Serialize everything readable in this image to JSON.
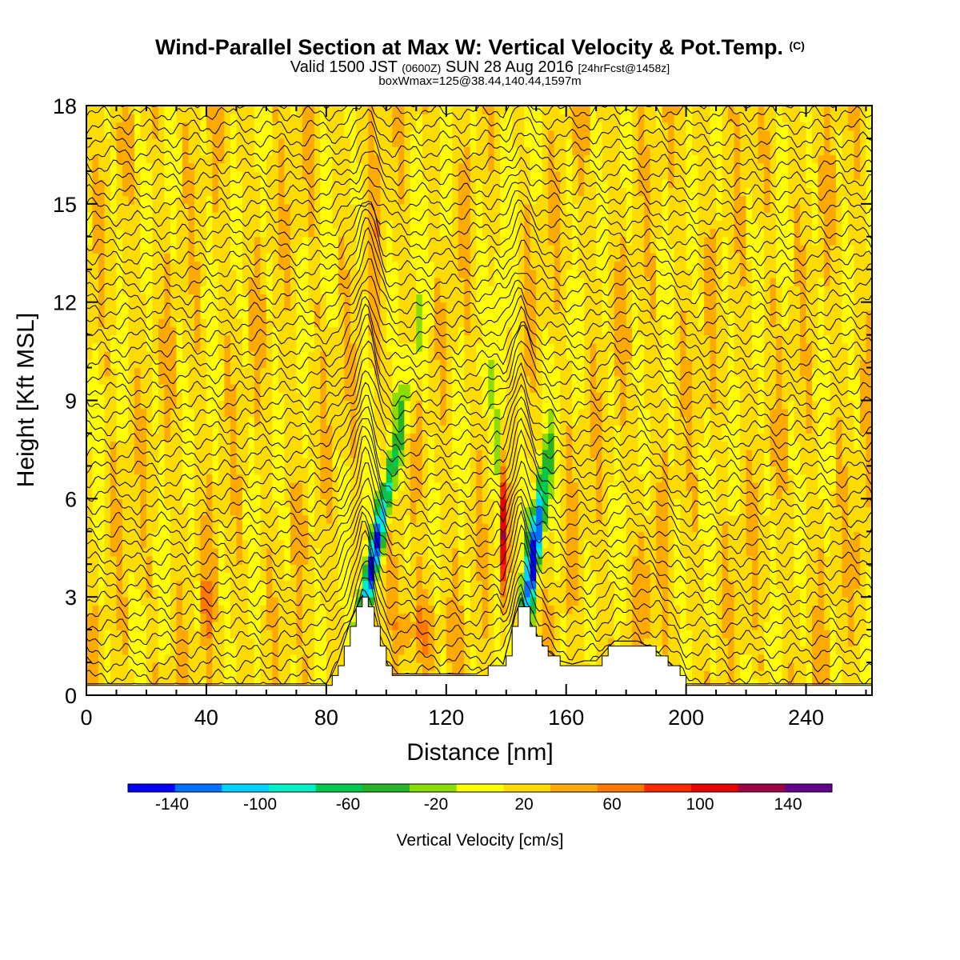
{
  "title": {
    "main": "Wind-Parallel Section at Max W: Vertical Velocity & Pot.Temp.",
    "main_mark": "(C)",
    "valid_prefix": "Valid 1500 JST",
    "valid_utc": "(0600Z)",
    "valid_date": "SUN 28 Aug 2016",
    "forecast": "[24hrFcst@1458z]",
    "box": "boxWmax=125@38.44,140.44,1597m"
  },
  "chart_data": {
    "type": "heatmap",
    "xlabel": "Distance [nm]",
    "ylabel": "Height [Kft MSL]",
    "xlim": [
      0,
      262
    ],
    "ylim": [
      0,
      18
    ],
    "x_ticks": [
      0,
      40,
      80,
      120,
      160,
      200,
      240
    ],
    "y_ticks": [
      0,
      3,
      6,
      9,
      12,
      15,
      18
    ],
    "colorbar": {
      "title": "Vertical Velocity [cm/s]",
      "levels": [
        -160,
        -140,
        -120,
        -100,
        -80,
        -60,
        -40,
        -20,
        0,
        20,
        40,
        60,
        80,
        100,
        120,
        140,
        160
      ],
      "colors": [
        "#0000ff",
        "#0070ff",
        "#00d0ff",
        "#00f0c8",
        "#00c850",
        "#28b428",
        "#8cdc00",
        "#ffff00",
        "#ffdc00",
        "#ffaa00",
        "#ff7800",
        "#ff2800",
        "#e60000",
        "#a00046",
        "#64008c"
      ],
      "labels": [
        -140,
        -100,
        -60,
        -20,
        20,
        60,
        100,
        140
      ]
    },
    "terrain": [
      {
        "x": 0,
        "h": 0.3
      },
      {
        "x": 80,
        "h": 0.3
      },
      {
        "x": 82,
        "h": 0.6
      },
      {
        "x": 84,
        "h": 1.0
      },
      {
        "x": 86,
        "h": 1.6
      },
      {
        "x": 88,
        "h": 2.2
      },
      {
        "x": 90,
        "h": 2.6
      },
      {
        "x": 92,
        "h": 3.0
      },
      {
        "x": 94,
        "h": 2.7
      },
      {
        "x": 96,
        "h": 2.1
      },
      {
        "x": 98,
        "h": 1.5
      },
      {
        "x": 100,
        "h": 1.0
      },
      {
        "x": 102,
        "h": 0.6
      },
      {
        "x": 110,
        "h": 0.6
      },
      {
        "x": 118,
        "h": 0.6
      },
      {
        "x": 124,
        "h": 0.6
      },
      {
        "x": 130,
        "h": 0.6
      },
      {
        "x": 134,
        "h": 0.8
      },
      {
        "x": 137,
        "h": 1.1
      },
      {
        "x": 139,
        "h": 0.9
      },
      {
        "x": 141,
        "h": 1.6
      },
      {
        "x": 143,
        "h": 2.4
      },
      {
        "x": 145,
        "h": 2.9
      },
      {
        "x": 147,
        "h": 2.4
      },
      {
        "x": 149,
        "h": 2.0
      },
      {
        "x": 151,
        "h": 1.6
      },
      {
        "x": 154,
        "h": 1.3
      },
      {
        "x": 158,
        "h": 1.0
      },
      {
        "x": 162,
        "h": 0.9
      },
      {
        "x": 166,
        "h": 1.0
      },
      {
        "x": 170,
        "h": 1.0
      },
      {
        "x": 176,
        "h": 1.6
      },
      {
        "x": 184,
        "h": 1.6
      },
      {
        "x": 190,
        "h": 1.3
      },
      {
        "x": 196,
        "h": 0.8
      },
      {
        "x": 200,
        "h": 0.3
      },
      {
        "x": 262,
        "h": 0.3
      }
    ]
  }
}
